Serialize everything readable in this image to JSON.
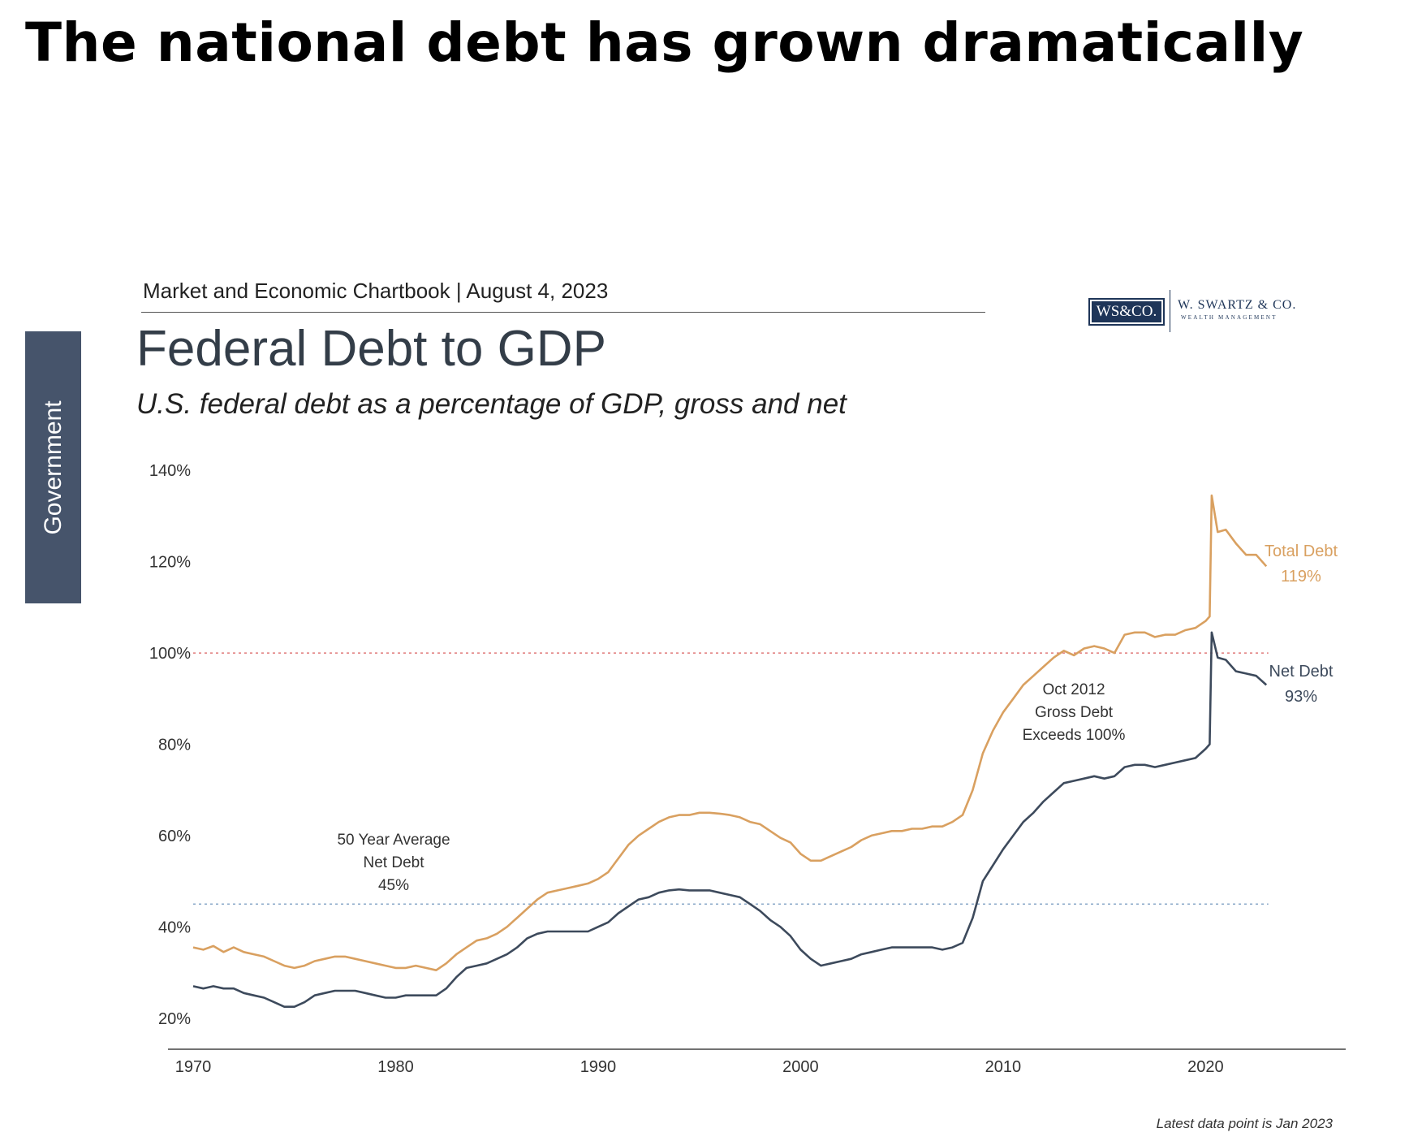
{
  "headline": "The national debt has grown dramatically",
  "chartbook_label": "Market and Economic Chartbook | August 4, 2023",
  "side_tab": "Government",
  "logo": {
    "box": "WS&CO.",
    "name": "W. SWARTZ & CO.",
    "sub": "WEALTH MANAGEMENT"
  },
  "footnote": "Latest data point is Jan 2023",
  "colors": {
    "total": "#d9a060",
    "net": "#3d4a5c",
    "ref100": "#e07a7a",
    "avg": "#8aa8c8",
    "axis": "#333333"
  },
  "chart_data": {
    "type": "line",
    "title": "Federal Debt to GDP",
    "subtitle": "U.S. federal debt as a percentage of GDP, gross and net",
    "xlim": [
      1970,
      2027
    ],
    "ylim": [
      18,
      142
    ],
    "x_ticks": [
      1970,
      1980,
      1990,
      2000,
      2010,
      2020
    ],
    "y_ticks": [
      20,
      40,
      60,
      80,
      100,
      120,
      140
    ],
    "y_tick_labels": [
      "20%",
      "40%",
      "60%",
      "80%",
      "100%",
      "120%",
      "140%"
    ],
    "grid": false,
    "series": [
      {
        "key": "total",
        "points": [
          [
            1970,
            35.5
          ],
          [
            1970.5,
            35
          ],
          [
            1971,
            35.8
          ],
          [
            1971.5,
            34.5
          ],
          [
            1972,
            35.5
          ],
          [
            1972.5,
            34.5
          ],
          [
            1973,
            34
          ],
          [
            1973.5,
            33.5
          ],
          [
            1974,
            32.5
          ],
          [
            1974.5,
            31.5
          ],
          [
            1975,
            31
          ],
          [
            1975.5,
            31.5
          ],
          [
            1976,
            32.5
          ],
          [
            1976.5,
            33
          ],
          [
            1977,
            33.5
          ],
          [
            1977.5,
            33.5
          ],
          [
            1978,
            33
          ],
          [
            1978.5,
            32.5
          ],
          [
            1979,
            32
          ],
          [
            1979.5,
            31.5
          ],
          [
            1980,
            31
          ],
          [
            1980.5,
            31
          ],
          [
            1981,
            31.5
          ],
          [
            1981.5,
            31
          ],
          [
            1982,
            30.5
          ],
          [
            1982.5,
            32
          ],
          [
            1983,
            34
          ],
          [
            1983.5,
            35.5
          ],
          [
            1984,
            37
          ],
          [
            1984.5,
            37.5
          ],
          [
            1985,
            38.5
          ],
          [
            1985.5,
            40
          ],
          [
            1986,
            42
          ],
          [
            1986.5,
            44
          ],
          [
            1987,
            46
          ],
          [
            1987.5,
            47.5
          ],
          [
            1988,
            48
          ],
          [
            1988.5,
            48.5
          ],
          [
            1989,
            49
          ],
          [
            1989.5,
            49.5
          ],
          [
            1990,
            50.5
          ],
          [
            1990.5,
            52
          ],
          [
            1991,
            55
          ],
          [
            1991.5,
            58
          ],
          [
            1992,
            60
          ],
          [
            1992.5,
            61.5
          ],
          [
            1993,
            63
          ],
          [
            1993.5,
            64
          ],
          [
            1994,
            64.5
          ],
          [
            1994.5,
            64.5
          ],
          [
            1995,
            65
          ],
          [
            1995.5,
            65
          ],
          [
            1996,
            64.8
          ],
          [
            1996.5,
            64.5
          ],
          [
            1997,
            64
          ],
          [
            1997.5,
            63
          ],
          [
            1998,
            62.5
          ],
          [
            1998.5,
            61
          ],
          [
            1999,
            59.5
          ],
          [
            1999.5,
            58.5
          ],
          [
            2000,
            56
          ],
          [
            2000.5,
            54.5
          ],
          [
            2001,
            54.5
          ],
          [
            2001.5,
            55.5
          ],
          [
            2002,
            56.5
          ],
          [
            2002.5,
            57.5
          ],
          [
            2003,
            59
          ],
          [
            2003.5,
            60
          ],
          [
            2004,
            60.5
          ],
          [
            2004.5,
            61
          ],
          [
            2005,
            61
          ],
          [
            2005.5,
            61.5
          ],
          [
            2006,
            61.5
          ],
          [
            2006.5,
            62
          ],
          [
            2007,
            62
          ],
          [
            2007.5,
            63
          ],
          [
            2008,
            64.5
          ],
          [
            2008.5,
            70
          ],
          [
            2009,
            78
          ],
          [
            2009.5,
            83
          ],
          [
            2010,
            87
          ],
          [
            2010.5,
            90
          ],
          [
            2011,
            93
          ],
          [
            2011.5,
            95
          ],
          [
            2012,
            97
          ],
          [
            2012.5,
            99
          ],
          [
            2013,
            100.5
          ],
          [
            2013.5,
            99.5
          ],
          [
            2014,
            101
          ],
          [
            2014.5,
            101.5
          ],
          [
            2015,
            101
          ],
          [
            2015.5,
            100
          ],
          [
            2016,
            104
          ],
          [
            2016.5,
            104.5
          ],
          [
            2017,
            104.5
          ],
          [
            2017.5,
            103.5
          ],
          [
            2018,
            104
          ],
          [
            2018.5,
            104
          ],
          [
            2019,
            105
          ],
          [
            2019.5,
            105.5
          ],
          [
            2020,
            107
          ],
          [
            2020.2,
            108
          ],
          [
            2020.3,
            134.5
          ],
          [
            2020.6,
            126.5
          ],
          [
            2021,
            127
          ],
          [
            2021.5,
            124
          ],
          [
            2022,
            121.5
          ],
          [
            2022.5,
            121.5
          ],
          [
            2023,
            119
          ]
        ]
      },
      {
        "key": "net",
        "points": [
          [
            1970,
            27
          ],
          [
            1970.5,
            26.5
          ],
          [
            1971,
            27
          ],
          [
            1971.5,
            26.5
          ],
          [
            1972,
            26.5
          ],
          [
            1972.5,
            25.5
          ],
          [
            1973,
            25
          ],
          [
            1973.5,
            24.5
          ],
          [
            1974,
            23.5
          ],
          [
            1974.5,
            22.5
          ],
          [
            1975,
            22.5
          ],
          [
            1975.5,
            23.5
          ],
          [
            1976,
            25
          ],
          [
            1976.5,
            25.5
          ],
          [
            1977,
            26
          ],
          [
            1977.5,
            26
          ],
          [
            1978,
            26
          ],
          [
            1978.5,
            25.5
          ],
          [
            1979,
            25
          ],
          [
            1979.5,
            24.5
          ],
          [
            1980,
            24.5
          ],
          [
            1980.5,
            25
          ],
          [
            1981,
            25
          ],
          [
            1981.5,
            25
          ],
          [
            1982,
            25
          ],
          [
            1982.5,
            26.5
          ],
          [
            1983,
            29
          ],
          [
            1983.5,
            31
          ],
          [
            1984,
            31.5
          ],
          [
            1984.5,
            32
          ],
          [
            1985,
            33
          ],
          [
            1985.5,
            34
          ],
          [
            1986,
            35.5
          ],
          [
            1986.5,
            37.5
          ],
          [
            1987,
            38.5
          ],
          [
            1987.5,
            39
          ],
          [
            1988,
            39
          ],
          [
            1988.5,
            39
          ],
          [
            1989,
            39
          ],
          [
            1989.5,
            39
          ],
          [
            1990,
            40
          ],
          [
            1990.5,
            41
          ],
          [
            1991,
            43
          ],
          [
            1991.5,
            44.5
          ],
          [
            1992,
            46
          ],
          [
            1992.5,
            46.5
          ],
          [
            1993,
            47.5
          ],
          [
            1993.5,
            48
          ],
          [
            1994,
            48.2
          ],
          [
            1994.5,
            48
          ],
          [
            1995,
            48
          ],
          [
            1995.5,
            48
          ],
          [
            1996,
            47.5
          ],
          [
            1996.5,
            47
          ],
          [
            1997,
            46.5
          ],
          [
            1997.5,
            45
          ],
          [
            1998,
            43.5
          ],
          [
            1998.5,
            41.5
          ],
          [
            1999,
            40
          ],
          [
            1999.5,
            38
          ],
          [
            2000,
            35
          ],
          [
            2000.5,
            33
          ],
          [
            2001,
            31.5
          ],
          [
            2001.5,
            32
          ],
          [
            2002,
            32.5
          ],
          [
            2002.5,
            33
          ],
          [
            2003,
            34
          ],
          [
            2003.5,
            34.5
          ],
          [
            2004,
            35
          ],
          [
            2004.5,
            35.5
          ],
          [
            2005,
            35.5
          ],
          [
            2005.5,
            35.5
          ],
          [
            2006,
            35.5
          ],
          [
            2006.5,
            35.5
          ],
          [
            2007,
            35
          ],
          [
            2007.5,
            35.5
          ],
          [
            2008,
            36.5
          ],
          [
            2008.5,
            42
          ],
          [
            2009,
            50
          ],
          [
            2009.5,
            53.5
          ],
          [
            2010,
            57
          ],
          [
            2010.5,
            60
          ],
          [
            2011,
            63
          ],
          [
            2011.5,
            65
          ],
          [
            2012,
            67.5
          ],
          [
            2012.5,
            69.5
          ],
          [
            2013,
            71.5
          ],
          [
            2013.5,
            72
          ],
          [
            2014,
            72.5
          ],
          [
            2014.5,
            73
          ],
          [
            2015,
            72.5
          ],
          [
            2015.5,
            73
          ],
          [
            2016,
            75
          ],
          [
            2016.5,
            75.5
          ],
          [
            2017,
            75.5
          ],
          [
            2017.5,
            75
          ],
          [
            2018,
            75.5
          ],
          [
            2018.5,
            76
          ],
          [
            2019,
            76.5
          ],
          [
            2019.5,
            77
          ],
          [
            2020,
            79
          ],
          [
            2020.2,
            80
          ],
          [
            2020.3,
            104.5
          ],
          [
            2020.6,
            99
          ],
          [
            2021,
            98.5
          ],
          [
            2021.5,
            96
          ],
          [
            2022,
            95.5
          ],
          [
            2022.5,
            95
          ],
          [
            2023,
            93
          ]
        ]
      }
    ],
    "reference_lines": [
      {
        "key": "ref100",
        "y": 100
      },
      {
        "key": "avg",
        "y": 45
      }
    ],
    "labels": {
      "total_name": "Total Debt",
      "total_value": "119%",
      "net_name": "Net Debt",
      "net_value": "93%",
      "avg_lines": [
        "50 Year Average",
        "Net Debt",
        "45%"
      ],
      "oct_lines": [
        "Oct 2012",
        "Gross Debt",
        "Exceeds 100%"
      ]
    }
  }
}
